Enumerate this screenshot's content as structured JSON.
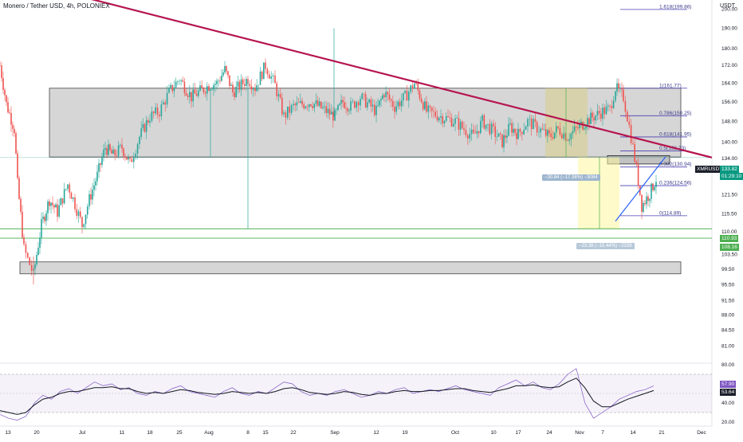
{
  "header": {
    "title": "Monero / Tether USD, 4h, POLONIEX",
    "unit_label": "USDT"
  },
  "price_tags": {
    "symbol": "XMRUSDT",
    "last_price": "133.82",
    "countdown": "01:29:10",
    "level_1": "110.93",
    "level_2": "108.16"
  },
  "rsi_tags": {
    "value_1": "57.90",
    "value_2": "53.64"
  },
  "callouts": {
    "drop_1": "−30.84 (−17.38%) −3084",
    "drop_2": "−23.38 (−15.44%) −2338"
  },
  "colors": {
    "trendline": "#b5154f",
    "zone_fill": "#c8c8c8",
    "fib_line": "#4a3fb0",
    "support_line": "#4caf50",
    "rsi_line": "#7e57c2",
    "rsi_ma": "#131722",
    "up_candle": "#26a69a",
    "down_candle": "#ef5350",
    "highlight_yellow": "#fff59d",
    "uptrend_line": "#2962ff"
  },
  "chart_data": [
    {
      "type": "candlestick",
      "title": "Monero / Tether USD, 4h, POLONIEX",
      "ylabel": "USDT",
      "y_scale": "log",
      "ylim": [
        77.5,
        205
      ],
      "y_ticks": [
        "200.00",
        "190.00",
        "180.00",
        "172.00",
        "164.00",
        "156.00",
        "148.00",
        "140.00",
        "134.00",
        "127.50",
        "121.50",
        "115.50",
        "110.00",
        "103.50",
        "99.50",
        "95.50",
        "91.50",
        "88.00",
        "84.50",
        "81.00"
      ],
      "x_ticks": [
        "13",
        "20",
        "Jul",
        "11",
        "18",
        "25",
        "Aug",
        "8",
        "15",
        "22",
        "Sep",
        "12",
        "19",
        "Oct",
        "10",
        "17",
        "24",
        "Nov",
        "7",
        "14",
        "21",
        "Dec"
      ],
      "anchors": [
        [
          "13",
          172
        ],
        [
          "14",
          155
        ],
        [
          "16",
          145
        ],
        [
          "17",
          125
        ],
        [
          "19",
          105
        ],
        [
          "20",
          98
        ],
        [
          "22",
          112
        ],
        [
          "24",
          120
        ],
        [
          "26",
          116
        ],
        [
          "28",
          125
        ],
        [
          "Jul",
          112
        ],
        [
          "3",
          120
        ],
        [
          "5",
          128
        ],
        [
          "7",
          138
        ],
        [
          "9",
          135
        ],
        [
          "11",
          138
        ],
        [
          "13",
          132
        ],
        [
          "15",
          142
        ],
        [
          "18",
          150
        ],
        [
          "20",
          152
        ],
        [
          "22",
          160
        ],
        [
          "25",
          166
        ],
        [
          "27",
          158
        ],
        [
          "Aug",
          163
        ],
        [
          "3",
          164
        ],
        [
          "5",
          170
        ],
        [
          "7",
          160
        ],
        [
          "9",
          166
        ],
        [
          "11",
          162
        ],
        [
          "13",
          172
        ],
        [
          "15",
          163
        ],
        [
          "17",
          150
        ],
        [
          "19",
          154
        ],
        [
          "22",
          156
        ],
        [
          "24",
          150
        ],
        [
          "26",
          156
        ],
        [
          "29",
          154
        ],
        [
          "Sep",
          158
        ],
        [
          "3",
          152
        ],
        [
          "5",
          160
        ],
        [
          "7",
          154
        ],
        [
          "9",
          158
        ],
        [
          "12",
          164
        ],
        [
          "14",
          152
        ],
        [
          "16",
          148
        ],
        [
          "19",
          145
        ],
        [
          "21",
          142
        ],
        [
          "24",
          148
        ],
        [
          "27",
          144
        ],
        [
          "Oct",
          140
        ],
        [
          "3",
          146
        ],
        [
          "5",
          143
        ],
        [
          "8",
          148
        ],
        [
          "10",
          145
        ],
        [
          "12",
          142
        ],
        [
          "14",
          145
        ],
        [
          "17",
          142
        ],
        [
          "19",
          146
        ],
        [
          "22",
          148
        ],
        [
          "24",
          150
        ],
        [
          "27",
          152
        ],
        [
          "29",
          153
        ],
        [
          "Nov",
          162
        ],
        [
          "3",
          158
        ],
        [
          "5",
          138
        ],
        [
          "7",
          118
        ],
        [
          "9",
          122
        ],
        [
          "11",
          128
        ],
        [
          "13",
          130
        ],
        [
          "15",
          131
        ],
        [
          "17",
          133
        ]
      ],
      "zones": [
        {
          "top": 161.77,
          "bottom": 134.5
        },
        {
          "top": 101.5,
          "bottom": 98.3
        },
        {
          "top": 135.0,
          "bottom": 132.0
        }
      ],
      "fib_levels": [
        {
          "label": "1.618(199.86)",
          "value": 199.86
        },
        {
          "label": "1(161.77)",
          "value": 161.77
        },
        {
          "label": "0.786(150.25)",
          "value": 150.25
        },
        {
          "label": "0.618(141.95)",
          "value": 141.95
        },
        {
          "label": "0.5(136.73)",
          "value": 136.73
        },
        {
          "label": "0.382(130.94)",
          "value": 130.94
        },
        {
          "label": "0.236(124.56)",
          "value": 124.56
        },
        {
          "label": "0(114.89)",
          "value": 114.89
        }
      ],
      "support_levels": [
        110.93,
        108.16
      ],
      "last_price": 133.82
    },
    {
      "type": "line",
      "title": "RSI",
      "ylim": [
        20,
        80
      ],
      "y_ticks": [
        "80.00",
        "60.00",
        "40.00",
        "20.00"
      ],
      "bands": [
        70,
        30
      ],
      "series": [
        {
          "name": "",
          "values": [
            28,
            24,
            22,
            26,
            40,
            48,
            44,
            52,
            55,
            50,
            56,
            62,
            58,
            60,
            54,
            56,
            50,
            48,
            52,
            50,
            55,
            58,
            52,
            50,
            48,
            46,
            52,
            56,
            50,
            48,
            52,
            50,
            56,
            62,
            60,
            52,
            48,
            50,
            48,
            52,
            54,
            50,
            46,
            48,
            52,
            50,
            54,
            56,
            50,
            52,
            54,
            52,
            55,
            58,
            54,
            52,
            50,
            48,
            56,
            60,
            64,
            58,
            62,
            56,
            54,
            60,
            70,
            76,
            40,
            24,
            30,
            36,
            44,
            48,
            52,
            54,
            58
          ]
        },
        {
          "name": "",
          "values": [
            32,
            30,
            28,
            30,
            38,
            44,
            46,
            50,
            52,
            52,
            54,
            56,
            56,
            57,
            55,
            55,
            52,
            50,
            51,
            50,
            52,
            54,
            53,
            51,
            50,
            49,
            50,
            52,
            51,
            50,
            51,
            50,
            52,
            55,
            56,
            54,
            51,
            50,
            49,
            50,
            52,
            51,
            49,
            48,
            50,
            50,
            52,
            53,
            52,
            52,
            53,
            53,
            54,
            55,
            55,
            53,
            52,
            51,
            53,
            55,
            58,
            58,
            59,
            57,
            56,
            57,
            62,
            66,
            56,
            42,
            36,
            36,
            40,
            44,
            47,
            50,
            53
          ]
        }
      ]
    }
  ]
}
